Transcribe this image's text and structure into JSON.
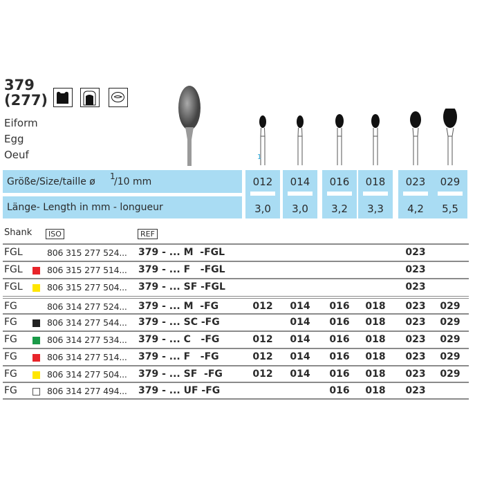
{
  "product": {
    "number": "379",
    "iso_number": "(277)",
    "names": [
      "Eiform",
      "Egg",
      "Oeuf"
    ],
    "pictograms": [
      "cavity-preparation-icon",
      "crown-preparation-icon",
      "oral-surgery-icon"
    ]
  },
  "shank_marker": "1",
  "size_header": {
    "label": "Größe/Size/taille ø",
    "fraction_num": "1",
    "fraction_den": "/10 mm"
  },
  "length_header": "Länge- Length in mm - longueur",
  "sizes": [
    {
      "size": "012",
      "length": "3,0"
    },
    {
      "size": "014",
      "length": "3,0"
    },
    {
      "size": "016",
      "length": "3,2"
    },
    {
      "size": "018",
      "length": "3,3"
    },
    {
      "size": "023",
      "length": "4,2"
    },
    {
      "size": "029",
      "length": "5,5"
    }
  ],
  "table": {
    "headers": {
      "shank": "Shank",
      "iso": "ISO",
      "ref": "REF"
    },
    "rows": [
      {
        "shank": "FGL",
        "color": null,
        "iso": "806 315 277 524...",
        "ref": "379 - ... M  -FGL",
        "cells": [
          "",
          "",
          "",
          "",
          "023",
          ""
        ]
      },
      {
        "shank": "FGL",
        "color": "#e8242a",
        "iso": "806 315 277 514...",
        "ref": "379 - ... F   -FGL",
        "cells": [
          "",
          "",
          "",
          "",
          "023",
          ""
        ]
      },
      {
        "shank": "FGL",
        "color": "#ffe600",
        "iso": "806 315 277 504...",
        "ref": "379 - ... SF -FGL",
        "cells": [
          "",
          "",
          "",
          "",
          "023",
          ""
        ]
      },
      {
        "shank": "FG",
        "color": null,
        "iso": "806 314 277 524...",
        "ref": "379 - ... M  -FG",
        "cells": [
          "012",
          "014",
          "016",
          "018",
          "023",
          "029"
        ]
      },
      {
        "shank": "FG",
        "color": "#222222",
        "iso": "806 314 277 544...",
        "ref": "379 - ... SC -FG",
        "cells": [
          "",
          "014",
          "016",
          "018",
          "023",
          "029"
        ]
      },
      {
        "shank": "FG",
        "color": "#1a9a48",
        "iso": "806 314 277 534...",
        "ref": "379 - ... C   -FG",
        "cells": [
          "012",
          "014",
          "016",
          "018",
          "023",
          "029"
        ]
      },
      {
        "shank": "FG",
        "color": "#e8242a",
        "iso": "806 314 277 514...",
        "ref": "379 - ... F   -FG",
        "cells": [
          "012",
          "014",
          "016",
          "018",
          "023",
          "029"
        ]
      },
      {
        "shank": "FG",
        "color": "#ffe600",
        "iso": "806 314 277 504...",
        "ref": "379 - ... SF  -FG",
        "cells": [
          "012",
          "014",
          "016",
          "018",
          "023",
          "029"
        ]
      },
      {
        "shank": "FG",
        "color": "#ffffff",
        "iso": "806 314 277 494...",
        "ref": "379 - ... UF -FG",
        "cells": [
          "",
          "",
          "016",
          "018",
          "023",
          ""
        ]
      }
    ]
  }
}
